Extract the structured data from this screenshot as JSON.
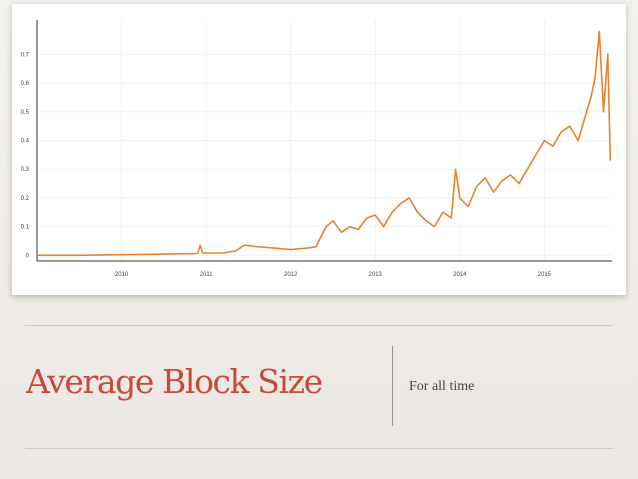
{
  "slide": {
    "title": "Average Block Size",
    "subtitle": "For all time"
  },
  "chart_data": {
    "type": "line",
    "title": "",
    "xlabel": "",
    "ylabel": "",
    "xlim": [
      2009.0,
      2015.8
    ],
    "ylim": [
      -0.02,
      0.82
    ],
    "x_ticks": [
      "2010",
      "2011",
      "2012",
      "2013",
      "2014",
      "2015"
    ],
    "y_ticks": [
      "0",
      "0.1",
      "0.2",
      "0.3",
      "0.4",
      "0.5",
      "0.6",
      "0.7"
    ],
    "grid": true,
    "line_color": "#e8822d",
    "series": [
      {
        "points": [
          [
            2009.0,
            0.0
          ],
          [
            2009.5,
            0.0
          ],
          [
            2010.0,
            0.002
          ],
          [
            2010.5,
            0.004
          ],
          [
            2010.9,
            0.006
          ],
          [
            2010.93,
            0.035
          ],
          [
            2010.96,
            0.008
          ],
          [
            2011.2,
            0.008
          ],
          [
            2011.35,
            0.015
          ],
          [
            2011.45,
            0.035
          ],
          [
            2011.6,
            0.03
          ],
          [
            2011.8,
            0.025
          ],
          [
            2012.0,
            0.02
          ],
          [
            2012.2,
            0.025
          ],
          [
            2012.3,
            0.03
          ],
          [
            2012.35,
            0.06
          ],
          [
            2012.42,
            0.1
          ],
          [
            2012.5,
            0.12
          ],
          [
            2012.6,
            0.08
          ],
          [
            2012.7,
            0.1
          ],
          [
            2012.8,
            0.09
          ],
          [
            2012.9,
            0.13
          ],
          [
            2013.0,
            0.14
          ],
          [
            2013.1,
            0.1
          ],
          [
            2013.2,
            0.15
          ],
          [
            2013.3,
            0.18
          ],
          [
            2013.4,
            0.2
          ],
          [
            2013.5,
            0.15
          ],
          [
            2013.6,
            0.12
          ],
          [
            2013.7,
            0.1
          ],
          [
            2013.8,
            0.15
          ],
          [
            2013.9,
            0.13
          ],
          [
            2013.95,
            0.3
          ],
          [
            2014.0,
            0.2
          ],
          [
            2014.1,
            0.17
          ],
          [
            2014.2,
            0.24
          ],
          [
            2014.3,
            0.27
          ],
          [
            2014.4,
            0.22
          ],
          [
            2014.5,
            0.26
          ],
          [
            2014.6,
            0.28
          ],
          [
            2014.7,
            0.25
          ],
          [
            2014.8,
            0.3
          ],
          [
            2014.9,
            0.35
          ],
          [
            2015.0,
            0.4
          ],
          [
            2015.1,
            0.38
          ],
          [
            2015.2,
            0.43
          ],
          [
            2015.3,
            0.45
          ],
          [
            2015.4,
            0.4
          ],
          [
            2015.5,
            0.5
          ],
          [
            2015.55,
            0.55
          ],
          [
            2015.6,
            0.62
          ],
          [
            2015.65,
            0.78
          ],
          [
            2015.7,
            0.5
          ],
          [
            2015.75,
            0.7
          ],
          [
            2015.78,
            0.33
          ]
        ]
      }
    ]
  }
}
